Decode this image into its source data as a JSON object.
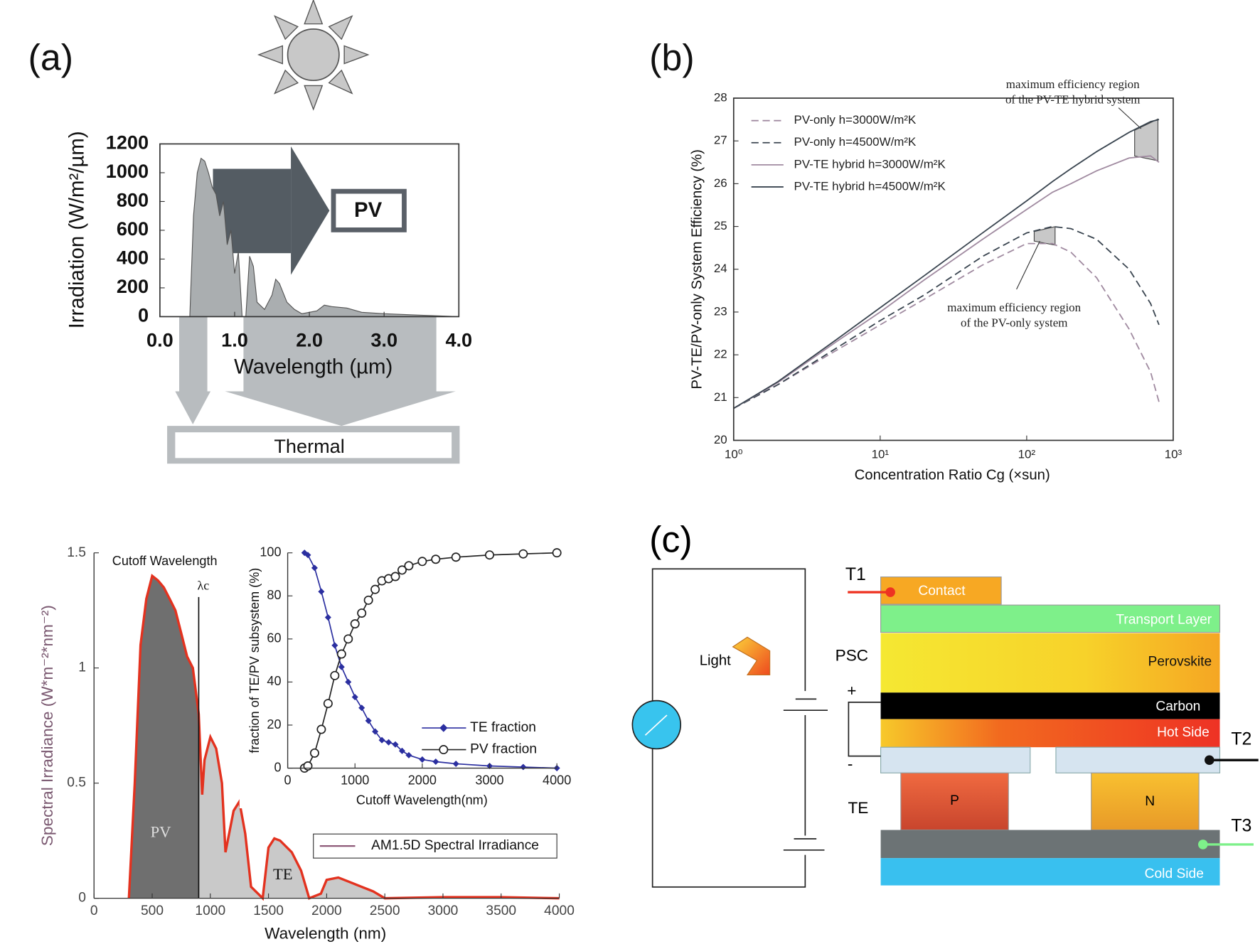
{
  "chart_data": [
    {
      "type": "area",
      "panel": "(a)",
      "xlabel": "Wavelength (µm)",
      "ylabel": "Irradiation (W/m²/µm)",
      "x": [
        0.4,
        0.45,
        0.5,
        0.55,
        0.6,
        0.65,
        0.7,
        0.75,
        0.8,
        0.85,
        0.9,
        0.95,
        1.0,
        1.05,
        1.1,
        1.15,
        1.2,
        1.25,
        1.3,
        1.4,
        1.5,
        1.55,
        1.6,
        1.7,
        1.8,
        1.9,
        2.0,
        2.1,
        2.2,
        2.3,
        2.5,
        2.7,
        3.0,
        3.5,
        4.0
      ],
      "values": [
        0,
        700,
        1000,
        1100,
        1080,
        1000,
        900,
        850,
        700,
        800,
        500,
        600,
        300,
        450,
        0,
        0,
        420,
        350,
        100,
        50,
        150,
        260,
        230,
        100,
        50,
        20,
        30,
        40,
        80,
        70,
        60,
        30,
        20,
        10,
        0
      ],
      "color": "#aaaeb0",
      "xlim": [
        0,
        4
      ],
      "ylim": [
        0,
        1200
      ],
      "xticks": [
        {
          "value": 0,
          "label": "0.0"
        },
        {
          "value": 1,
          "label": "1.0"
        },
        {
          "value": 2,
          "label": "2.0"
        },
        {
          "value": 3,
          "label": "3.0"
        },
        {
          "value": 4,
          "label": "4.0"
        }
      ],
      "yticks": [
        0,
        200,
        400,
        600,
        800,
        1000,
        1200
      ],
      "annotations": [
        "PV",
        "Thermal"
      ]
    },
    {
      "type": "line",
      "panel": "(b)",
      "xlabel": "Concentration Ratio Cg (×sun)",
      "ylabel": "PV-TE/PV-only System Efficiency (%)",
      "x": [
        1,
        2,
        5,
        10,
        20,
        50,
        100,
        150,
        200,
        300,
        500,
        700,
        800
      ],
      "xlog": true,
      "legend": "top-left",
      "series": [
        {
          "name": "PV-only h=3000W/m²K",
          "color": "#a08aa0",
          "dash": true,
          "values": [
            20.75,
            21.3,
            22.1,
            22.7,
            23.3,
            24.1,
            24.6,
            24.6,
            24.4,
            23.8,
            22.6,
            21.6,
            20.9
          ]
        },
        {
          "name": "PV-only h=4500W/m²K",
          "color": "#3a4550",
          "dash": true,
          "values": [
            20.75,
            21.3,
            22.15,
            22.8,
            23.4,
            24.3,
            24.85,
            25.0,
            24.95,
            24.7,
            24.0,
            23.2,
            22.7
          ]
        },
        {
          "name": "PV-TE hybrid h=3000W/m²K",
          "color": "#a08aa0",
          "dash": false,
          "values": [
            20.75,
            21.35,
            22.3,
            23.0,
            23.75,
            24.7,
            25.4,
            25.8,
            26.0,
            26.3,
            26.6,
            26.65,
            26.5
          ]
        },
        {
          "name": "PV-TE hybrid h=4500W/m²K",
          "color": "#3a4550",
          "dash": false,
          "values": [
            20.75,
            21.37,
            22.35,
            23.1,
            23.85,
            24.85,
            25.6,
            26.05,
            26.35,
            26.75,
            27.2,
            27.45,
            27.5
          ]
        }
      ],
      "xlim": [
        1,
        1000
      ],
      "xticks": [
        {
          "value": 1,
          "label": "10⁰"
        },
        {
          "value": 10,
          "label": "10¹"
        },
        {
          "value": 100,
          "label": "10²"
        },
        {
          "value": 1000,
          "label": "10³"
        }
      ],
      "ylim": [
        20,
        28
      ],
      "yticks": [
        20,
        21,
        22,
        23,
        24,
        25,
        26,
        27,
        28
      ],
      "annotations": [
        "maximum efficiency region",
        "of the PV-TE hybrid system",
        "maximum efficiency region",
        "of the PV-only system"
      ]
    },
    {
      "type": "area",
      "xlabel": "Wavelength (nm)",
      "ylabel": "Spectral Irradiance (W*m⁻²*nm⁻²)",
      "x": [
        300,
        350,
        400,
        450,
        500,
        550,
        600,
        650,
        700,
        750,
        800,
        850,
        900,
        930,
        950,
        1000,
        1050,
        1100,
        1130,
        1200,
        1250,
        1300,
        1350,
        1450,
        1500,
        1550,
        1600,
        1700,
        1780,
        1850,
        1950,
        2000,
        2100,
        2200,
        2300,
        2400,
        2500,
        3000,
        3500,
        4000
      ],
      "series": [
        {
          "name": "AM1.5D Spectral Irradiance",
          "color": "#e3321f",
          "values": [
            0,
            0.5,
            1.1,
            1.3,
            1.4,
            1.38,
            1.35,
            1.3,
            1.25,
            1.15,
            1.05,
            1.0,
            0.8,
            0.45,
            0.6,
            0.7,
            0.65,
            0.5,
            0.2,
            0.38,
            0.42,
            0.28,
            0.05,
            0,
            0.22,
            0.26,
            0.25,
            0.2,
            0.12,
            0,
            0.02,
            0.08,
            0.09,
            0.07,
            0.05,
            0.03,
            0,
            0.005,
            0.005,
            0
          ]
        }
      ],
      "fill_colors": [
        "#6f6f6f",
        "#c9c9c9"
      ],
      "cutoff": 900,
      "xlim": [
        0,
        4000
      ],
      "xticks": [
        0,
        500,
        1000,
        1500,
        2000,
        2500,
        3000,
        3500,
        4000
      ],
      "ylim": [
        0,
        1.5
      ],
      "yticks": [
        0,
        0.5,
        1,
        1.5
      ],
      "annotations": [
        "Cutoff Wavelength",
        "λc",
        "PV",
        "TE"
      ]
    },
    {
      "type": "line",
      "xlabel": "Cutoff Wavelength(nm)",
      "ylabel": "fraction of TE/PV subsystem (%)",
      "legend": "bottom-right",
      "x": [
        250,
        300,
        400,
        500,
        600,
        700,
        800,
        900,
        1000,
        1100,
        1200,
        1300,
        1400,
        1500,
        1600,
        1700,
        1800,
        2000,
        2200,
        2500,
        3000,
        3500,
        4000
      ],
      "series": [
        {
          "name": "TE fraction",
          "color": "#2b2fa0",
          "marker": "diamond",
          "values": [
            100,
            99,
            93,
            82,
            70,
            57,
            47,
            40,
            33,
            28,
            22,
            17,
            13,
            12,
            11,
            8,
            6,
            4,
            3,
            2,
            1,
            0.5,
            0
          ]
        },
        {
          "name": "PV fraction",
          "color": "#222222",
          "marker": "circle",
          "values": [
            0,
            1,
            7,
            18,
            30,
            43,
            53,
            60,
            67,
            72,
            78,
            83,
            87,
            88,
            89,
            92,
            94,
            96,
            97,
            98,
            99,
            99.5,
            100
          ]
        }
      ],
      "xlim": [
        0,
        4000
      ],
      "xticks": [
        0,
        1000,
        2000,
        3000,
        4000
      ],
      "ylim": [
        0,
        100
      ],
      "yticks": [
        0,
        20,
        40,
        60,
        80,
        100
      ]
    }
  ],
  "diagram": {
    "panel": "(c)",
    "light": "Light",
    "psc": "PSC",
    "te": "TE",
    "plus": "+",
    "minus": "-",
    "terminals": [
      "T1",
      "T2",
      "T3"
    ],
    "layers": {
      "contact": "Contact",
      "transport": "Transport Layer",
      "perovskite": "Perovskite",
      "carbon": "Carbon",
      "hot": "Hot Side",
      "p": "P",
      "n": "N",
      "cold": "Cold Side"
    }
  }
}
